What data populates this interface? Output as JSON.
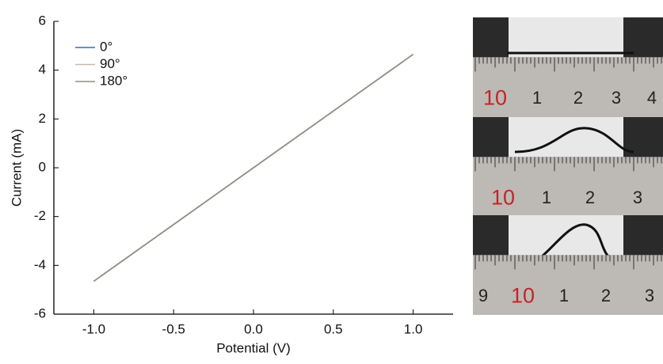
{
  "chart_data": {
    "type": "line",
    "x_label": "Potential (V)",
    "y_label": "Current (mA)",
    "x": [
      -1,
      1
    ],
    "series": [
      {
        "name": "0°",
        "color": "#3d6f9e",
        "values": [
          -4.65,
          4.65
        ]
      },
      {
        "name": "90°",
        "color": "#c9b9a9",
        "values": [
          -4.65,
          4.65
        ]
      },
      {
        "name": "180°",
        "color": "#8e8e84",
        "values": [
          -4.65,
          4.65
        ]
      }
    ],
    "xlim": [
      -1.25,
      1.25
    ],
    "xticks": [
      {
        "value": -1,
        "label": "-1.0"
      },
      -0.5,
      {
        "value": 0,
        "label": "0.0"
      },
      0.5,
      {
        "value": 1,
        "label": "1.0"
      }
    ],
    "ylim": [
      -6,
      6
    ],
    "yticks": [
      -6,
      -4,
      -2,
      0,
      2,
      4,
      6
    ],
    "legend": "top-left"
  },
  "photos": {
    "panels": [
      {
        "ruler_labels": [
          "10",
          "1",
          "2",
          "3",
          "4"
        ]
      },
      {
        "ruler_labels": [
          "10",
          "1",
          "2",
          "3"
        ]
      },
      {
        "ruler_labels": [
          "9",
          "10",
          "1",
          "2",
          "3"
        ]
      }
    ]
  }
}
